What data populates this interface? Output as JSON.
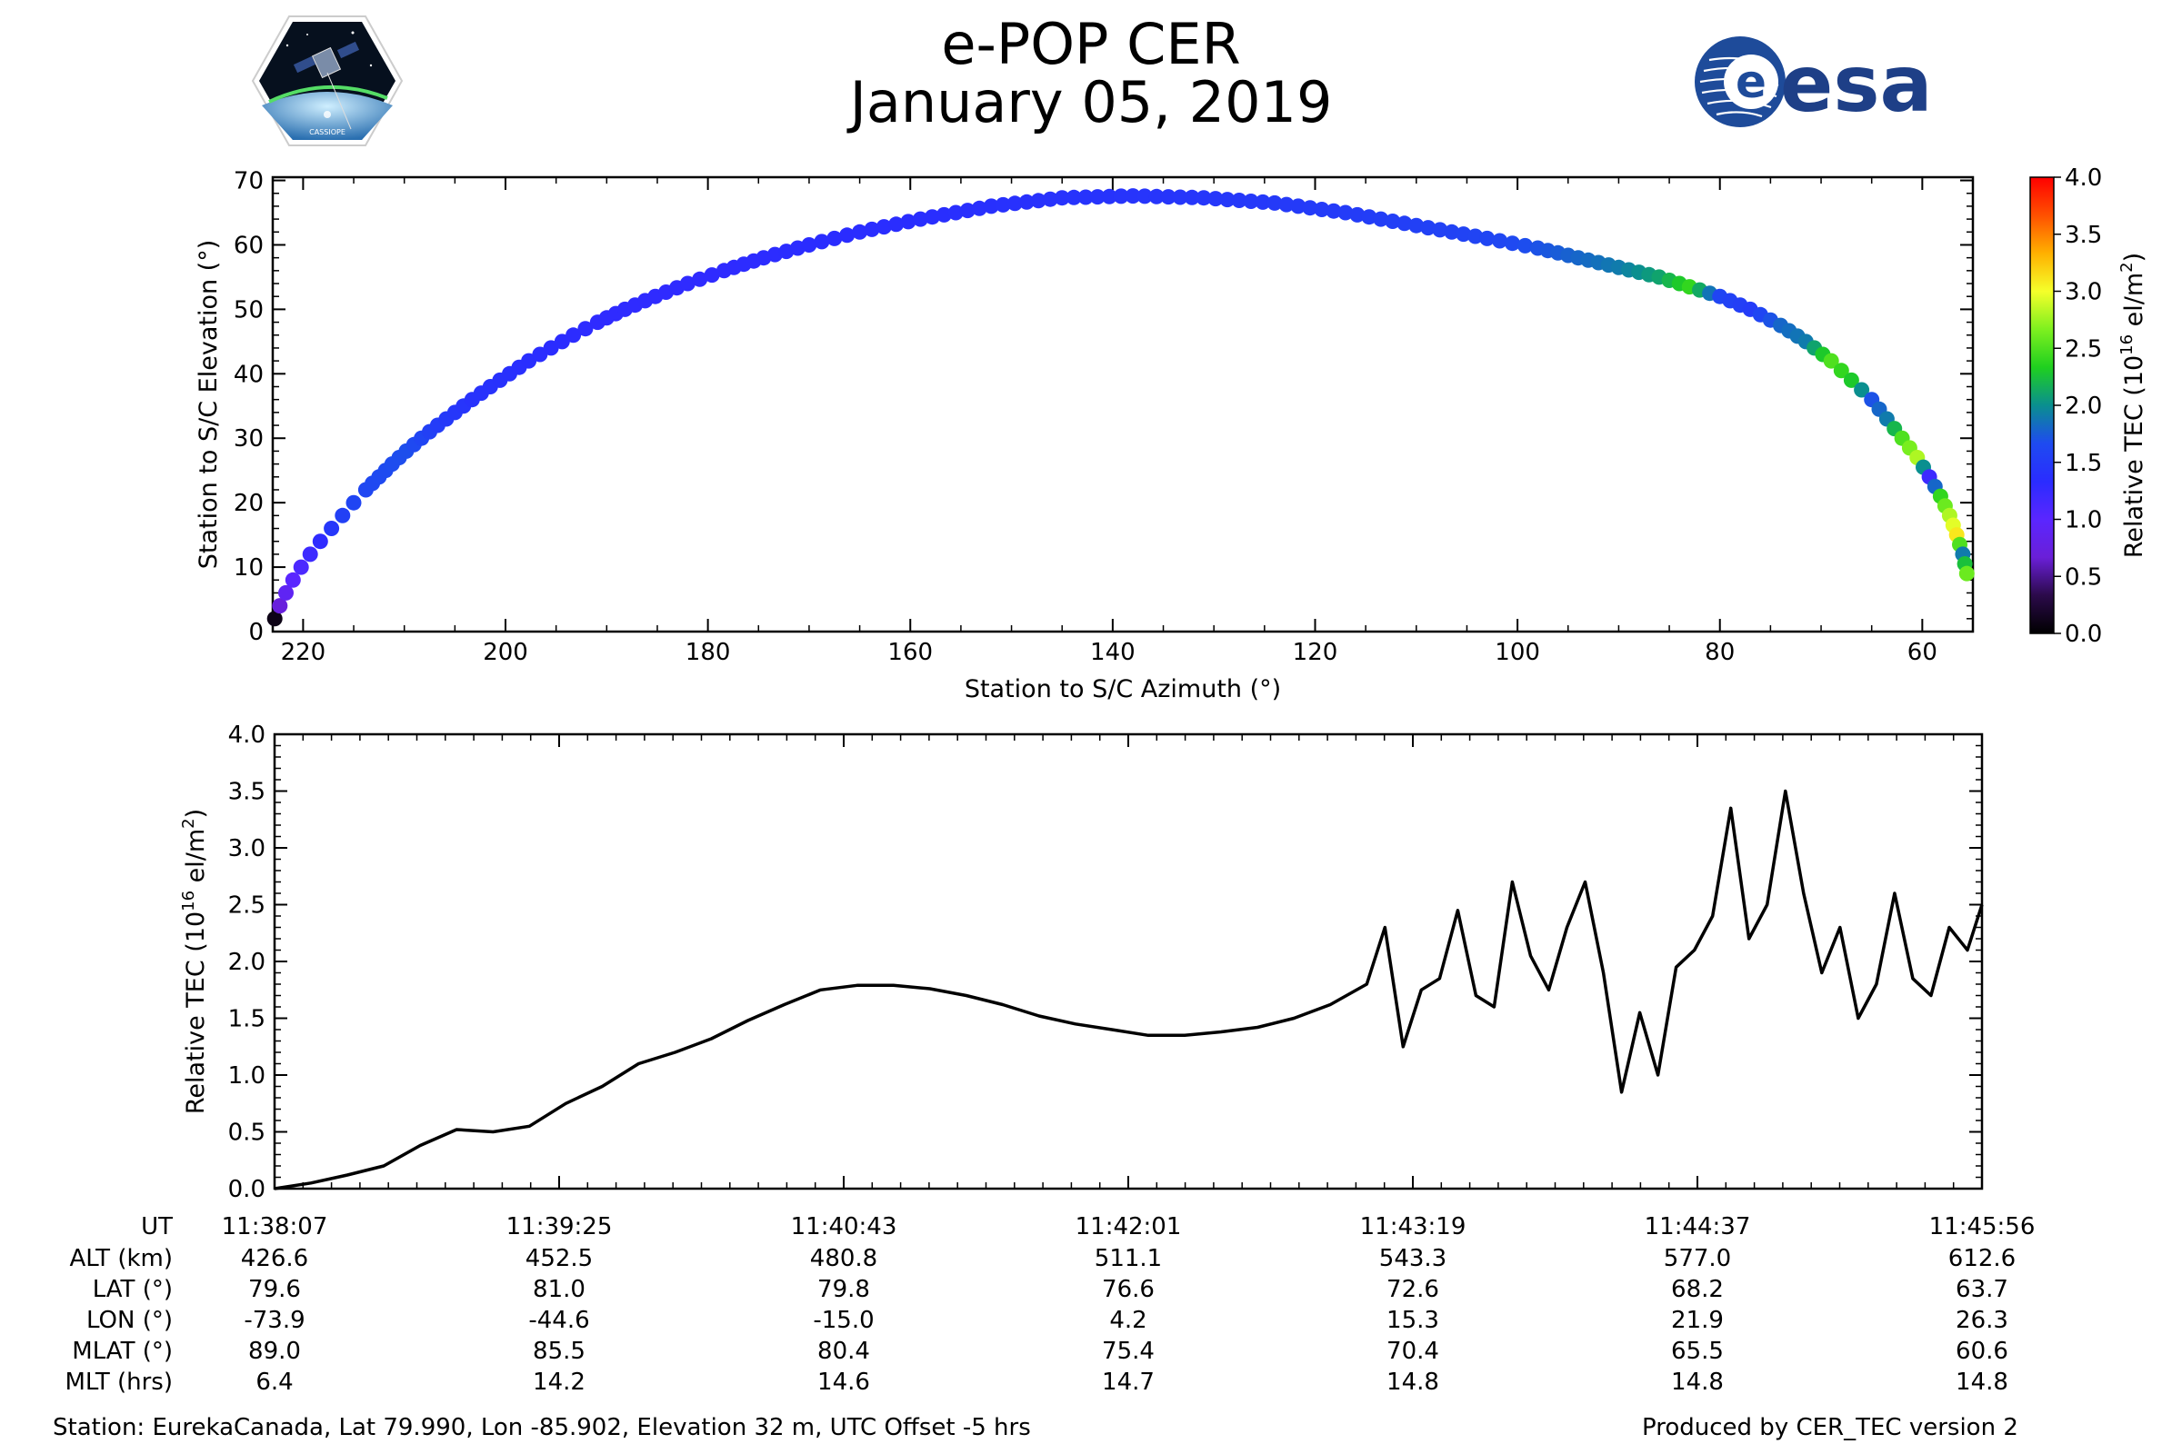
{
  "header": {
    "title": "e-POP CER",
    "date": "January 05, 2019",
    "left_logo": {
      "name": "cassiope-logo",
      "text": "CASSIOPE"
    },
    "right_logo": {
      "name": "esa-logo",
      "text": "esa"
    }
  },
  "footer": {
    "station": "Station: EurekaCanada, Lat 79.990, Lon -85.902, Elevation 32 m, UTC Offset -5 hrs",
    "produced": "Produced by CER_TEC version 2"
  },
  "colors": {
    "line": "#000000",
    "colormap": [
      "#000000",
      "#2b0a4a",
      "#6a1fd8",
      "#5a26ff",
      "#2a2cff",
      "#1e4bf0",
      "#0a8f8f",
      "#1fd01f",
      "#7ef01f",
      "#f5ff2a",
      "#ffb000",
      "#ff5000",
      "#ff0000"
    ]
  },
  "chart_data": [
    {
      "type": "scatter",
      "title": "",
      "xlabel": "Station to S/C Azimuth (°)",
      "ylabel": "Station to S/C Elevation (°)",
      "xlim": [
        223,
        55
      ],
      "ylim": [
        0,
        70.5
      ],
      "xticks": [
        220,
        200,
        180,
        160,
        140,
        120,
        100,
        80,
        60
      ],
      "yticks": [
        0,
        10,
        20,
        30,
        40,
        50,
        60,
        70
      ],
      "color_by": "Relative TEC",
      "points": [
        {
          "az": 222.8,
          "el": 2,
          "tec": 0.1
        },
        {
          "az": 222.3,
          "el": 4,
          "tec": 0.7
        },
        {
          "az": 221.7,
          "el": 6,
          "tec": 0.9
        },
        {
          "az": 221,
          "el": 8,
          "tec": 1.0
        },
        {
          "az": 220.2,
          "el": 10,
          "tec": 1.1
        },
        {
          "az": 219.3,
          "el": 12,
          "tec": 1.2
        },
        {
          "az": 218.3,
          "el": 14,
          "tec": 1.3
        },
        {
          "az": 217.2,
          "el": 16,
          "tec": 1.45
        },
        {
          "az": 216.1,
          "el": 18,
          "tec": 1.55
        },
        {
          "az": 215,
          "el": 20,
          "tec": 1.6
        },
        {
          "az": 213.8,
          "el": 22,
          "tec": 1.62
        },
        {
          "az": 212.5,
          "el": 24,
          "tec": 1.65
        },
        {
          "az": 211.2,
          "el": 26,
          "tec": 1.67
        },
        {
          "az": 209.8,
          "el": 28,
          "tec": 1.68
        },
        {
          "az": 208.3,
          "el": 30,
          "tec": 1.6
        },
        {
          "az": 206.7,
          "el": 32,
          "tec": 1.5
        },
        {
          "az": 205,
          "el": 34,
          "tec": 1.45
        },
        {
          "az": 203.3,
          "el": 36,
          "tec": 1.4
        },
        {
          "az": 201.5,
          "el": 38,
          "tec": 1.4
        },
        {
          "az": 199.6,
          "el": 40,
          "tec": 1.38
        },
        {
          "az": 197.7,
          "el": 42,
          "tec": 1.35
        },
        {
          "az": 195.5,
          "el": 44,
          "tec": 1.33
        },
        {
          "az": 193.3,
          "el": 46,
          "tec": 1.32
        },
        {
          "az": 190.9,
          "el": 48,
          "tec": 1.3
        },
        {
          "az": 188.2,
          "el": 50,
          "tec": 1.3
        },
        {
          "az": 185.2,
          "el": 52,
          "tec": 1.3
        },
        {
          "az": 182,
          "el": 54,
          "tec": 1.3
        },
        {
          "az": 178.4,
          "el": 56,
          "tec": 1.3
        },
        {
          "az": 174.5,
          "el": 58,
          "tec": 1.32
        },
        {
          "az": 170,
          "el": 60,
          "tec": 1.33
        },
        {
          "az": 165,
          "el": 62,
          "tec": 1.34
        },
        {
          "az": 159,
          "el": 64,
          "tec": 1.35
        },
        {
          "az": 152,
          "el": 66,
          "tec": 1.38
        },
        {
          "az": 145,
          "el": 67.3,
          "tec": 1.4
        },
        {
          "az": 138,
          "el": 67.6,
          "tec": 1.42
        },
        {
          "az": 131,
          "el": 67.3,
          "tec": 1.45
        },
        {
          "az": 124,
          "el": 66.5,
          "tec": 1.48
        },
        {
          "az": 117,
          "el": 65,
          "tec": 1.5
        },
        {
          "az": 110,
          "el": 63,
          "tec": 1.55
        },
        {
          "az": 103,
          "el": 61,
          "tec": 1.6
        },
        {
          "az": 98,
          "el": 59.5,
          "tec": 1.7
        },
        {
          "az": 94,
          "el": 58,
          "tec": 1.8
        },
        {
          "az": 90,
          "el": 56.5,
          "tec": 1.9
        },
        {
          "az": 86,
          "el": 55,
          "tec": 2.1
        },
        {
          "az": 83,
          "el": 53.5,
          "tec": 2.4
        },
        {
          "az": 80,
          "el": 52,
          "tec": 1.6
        },
        {
          "az": 77,
          "el": 50,
          "tec": 1.5
        },
        {
          "az": 74,
          "el": 47.5,
          "tec": 1.8
        },
        {
          "az": 71.5,
          "el": 45,
          "tec": 1.9
        },
        {
          "az": 69,
          "el": 42,
          "tec": 2.5
        },
        {
          "az": 67,
          "el": 39,
          "tec": 2.3
        },
        {
          "az": 65,
          "el": 36,
          "tec": 1.7
        },
        {
          "az": 63.5,
          "el": 33,
          "tec": 1.9
        },
        {
          "az": 62,
          "el": 30,
          "tec": 2.5
        },
        {
          "az": 60.5,
          "el": 27,
          "tec": 2.8
        },
        {
          "az": 59.3,
          "el": 24,
          "tec": 1.2
        },
        {
          "az": 58.2,
          "el": 21,
          "tec": 2.4
        },
        {
          "az": 57.3,
          "el": 18,
          "tec": 2.8
        },
        {
          "az": 56.6,
          "el": 15,
          "tec": 3.1
        },
        {
          "az": 56,
          "el": 12,
          "tec": 1.9
        },
        {
          "az": 55.6,
          "el": 9,
          "tec": 2.6
        }
      ],
      "colorbar": {
        "label": "Relative TEC (10",
        "sup": "16",
        "unit": " el/m",
        "sup2": "2",
        "close": ")",
        "range": [
          0,
          4
        ],
        "ticks": [
          "0.0",
          "0.5",
          "1.0",
          "1.5",
          "2.0",
          "2.5",
          "3.0",
          "3.5",
          "4.0"
        ]
      }
    },
    {
      "type": "line",
      "title": "",
      "xlabel": "",
      "ylabel": "Relative TEC (10",
      "ylabel_sup": "16",
      "ylabel_unit": " el/m",
      "ylabel_sup2": "2",
      "ylabel_close": ")",
      "xlim": [
        0,
        469
      ],
      "ylim": [
        0,
        4
      ],
      "yticks": [
        "0.0",
        "0.5",
        "1.0",
        "1.5",
        "2.0",
        "2.5",
        "3.0",
        "3.5",
        "4.0"
      ],
      "x": [
        0,
        10,
        20,
        30,
        40,
        50,
        60,
        70,
        80,
        90,
        100,
        110,
        120,
        130,
        140,
        150,
        160,
        170,
        180,
        190,
        200,
        210,
        220,
        230,
        240,
        250,
        260,
        270,
        280,
        290,
        300,
        305,
        310,
        315,
        320,
        325,
        330,
        335,
        340,
        345,
        350,
        355,
        360,
        365,
        370,
        375,
        380,
        385,
        390,
        395,
        400,
        405,
        410,
        415,
        420,
        425,
        430,
        435,
        440,
        445,
        450,
        455,
        460,
        465,
        469
      ],
      "y": [
        0,
        0.05,
        0.12,
        0.2,
        0.38,
        0.52,
        0.5,
        0.55,
        0.75,
        0.9,
        1.1,
        1.2,
        1.32,
        1.48,
        1.62,
        1.75,
        1.79,
        1.79,
        1.76,
        1.7,
        1.62,
        1.52,
        1.45,
        1.4,
        1.35,
        1.35,
        1.38,
        1.42,
        1.5,
        1.62,
        1.8,
        2.3,
        1.25,
        1.75,
        1.85,
        2.45,
        1.7,
        1.6,
        2.7,
        2.05,
        1.75,
        2.3,
        2.7,
        1.9,
        0.85,
        1.55,
        1.0,
        1.95,
        2.1,
        2.4,
        3.35,
        2.2,
        2.5,
        3.5,
        2.6,
        1.9,
        2.3,
        1.5,
        1.8,
        2.6,
        1.85,
        1.7,
        2.3,
        2.1,
        2.5
      ],
      "table": {
        "row_labels": [
          "UT",
          "ALT (km)",
          "LAT (°)",
          "LON (°)",
          "MLAT (°)",
          "MLT (hrs)"
        ],
        "columns": [
          {
            "UT": "11:38:07",
            "ALT": "426.6",
            "LAT": "79.6",
            "LON": "-73.9",
            "MLAT": "89.0",
            "MLT": "6.4"
          },
          {
            "UT": "11:39:25",
            "ALT": "452.5",
            "LAT": "81.0",
            "LON": "-44.6",
            "MLAT": "85.5",
            "MLT": "14.2"
          },
          {
            "UT": "11:40:43",
            "ALT": "480.8",
            "LAT": "79.8",
            "LON": "-15.0",
            "MLAT": "80.4",
            "MLT": "14.6"
          },
          {
            "UT": "11:42:01",
            "ALT": "511.1",
            "LAT": "76.6",
            "LON": "4.2",
            "MLAT": "75.4",
            "MLT": "14.7"
          },
          {
            "UT": "11:43:19",
            "ALT": "543.3",
            "LAT": "72.6",
            "LON": "15.3",
            "MLAT": "70.4",
            "MLT": "14.8"
          },
          {
            "UT": "11:44:37",
            "ALT": "577.0",
            "LAT": "68.2",
            "LON": "21.9",
            "MLAT": "65.5",
            "MLT": "14.8"
          },
          {
            "UT": "11:45:56",
            "ALT": "612.6",
            "LAT": "63.7",
            "LON": "26.3",
            "MLAT": "60.6",
            "MLT": "14.8"
          }
        ]
      }
    }
  ]
}
